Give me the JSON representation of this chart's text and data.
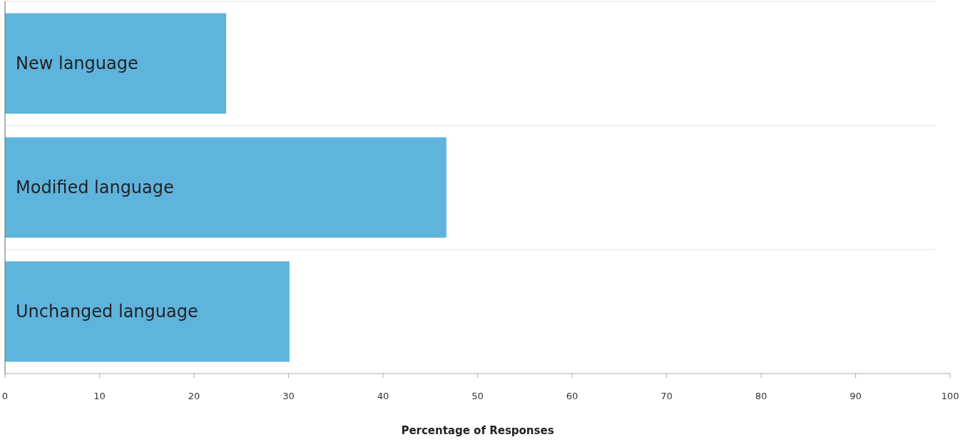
{
  "chart_data": {
    "type": "bar",
    "orientation": "horizontal",
    "xlabel": "Percentage of Responses",
    "categories": [
      "New language",
      "Modified language",
      "Unchanged language"
    ],
    "values": [
      23.4,
      46.7,
      30.1
    ],
    "color": "#5fb4de",
    "xlim": [
      0,
      100
    ],
    "xticks": [
      0,
      10,
      20,
      30,
      40,
      50,
      60,
      70,
      80,
      90,
      100
    ],
    "grid": false
  }
}
